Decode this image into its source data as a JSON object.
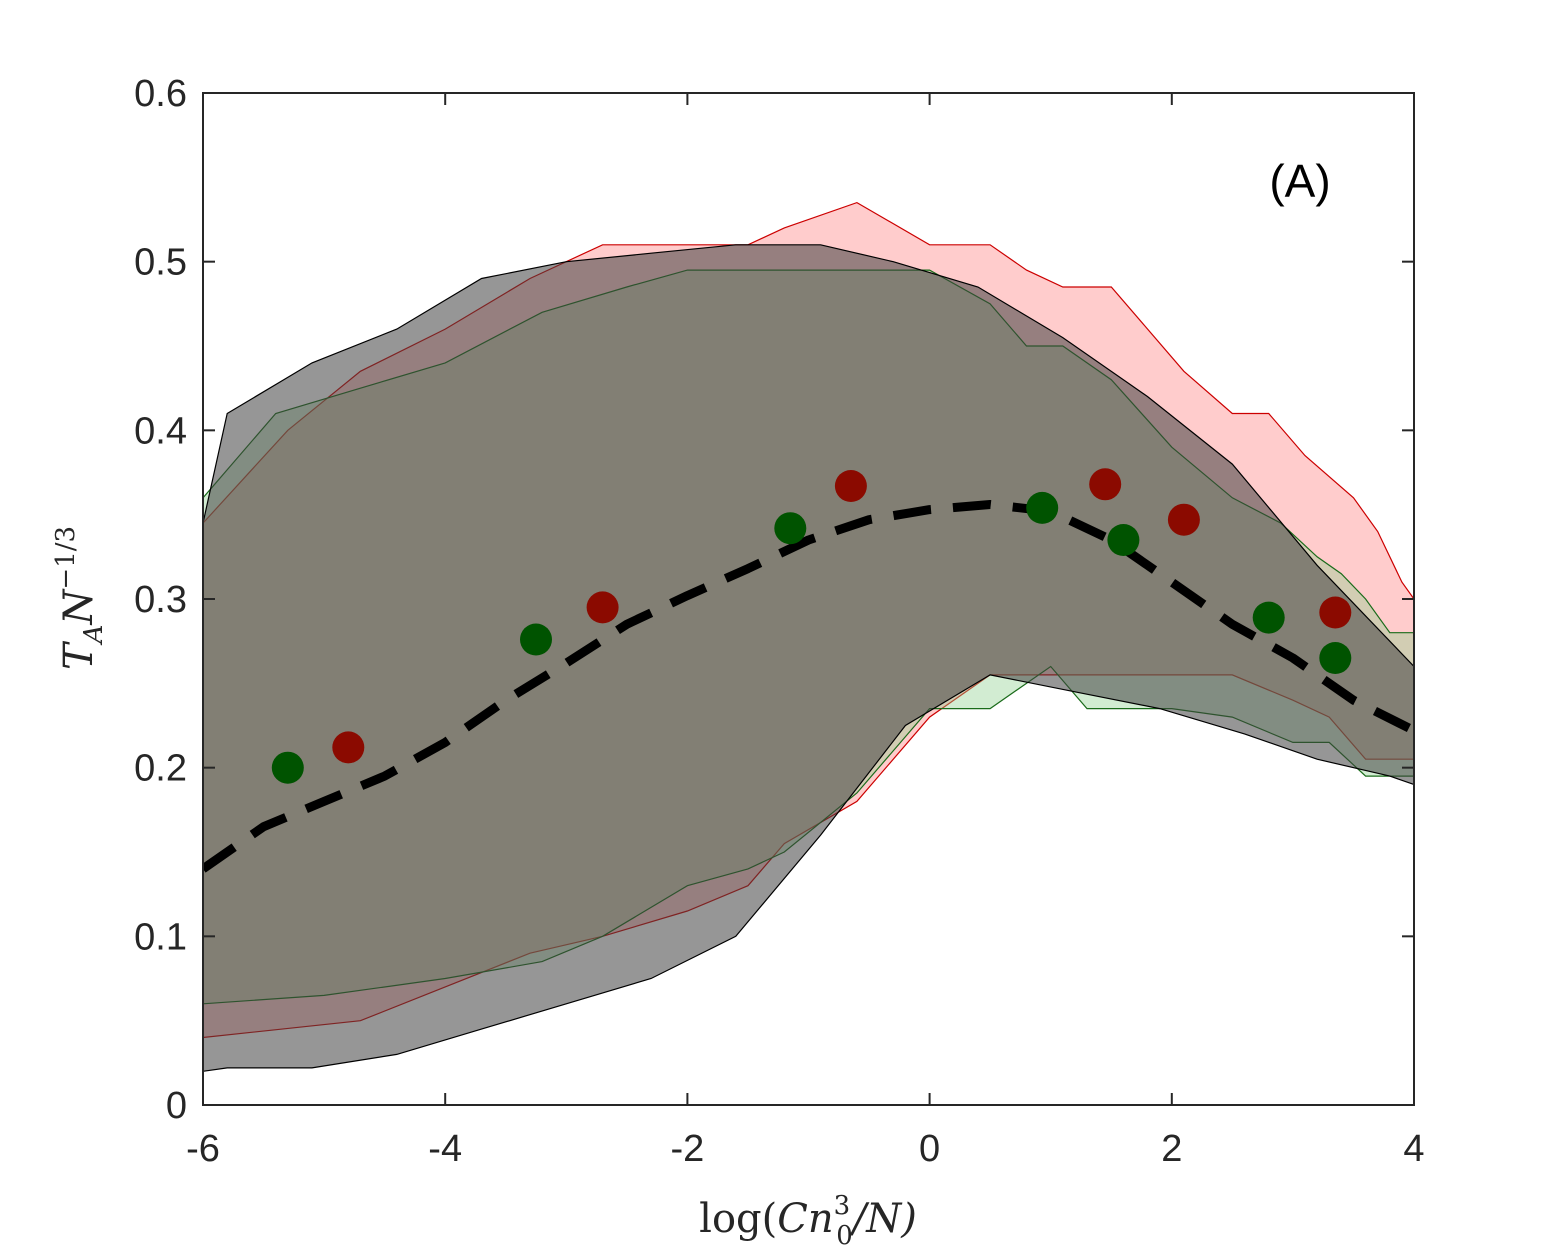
{
  "chart_data": {
    "type": "area",
    "panel_label": "(A)",
    "xlabel_parts": {
      "fn": "log(",
      "c": "C",
      "n": "n",
      "sup": "3",
      "sub": "0",
      "rest": "/N)"
    },
    "ylabel_parts": {
      "t": "T",
      "tsub": "A",
      "n": "N",
      "sup": "−1/3"
    },
    "xlim": [
      -6,
      4
    ],
    "ylim": [
      0,
      0.6
    ],
    "xticks": [
      -6,
      -4,
      -2,
      0,
      2,
      4
    ],
    "xtick_labels": [
      "-6",
      "-4",
      "-2",
      "0",
      "2",
      "4"
    ],
    "yticks": [
      0,
      0.1,
      0.2,
      0.3,
      0.4,
      0.5,
      0.6
    ],
    "ytick_labels": [
      "0",
      "0.1",
      "0.2",
      "0.3",
      "0.4",
      "0.5",
      "0.6"
    ],
    "grid": false,
    "colors": {
      "red_fill": "#ff9999",
      "red_edge": "#cc0000",
      "green_fill": "#8fcf8f",
      "green_edge": "#1a6b1a",
      "gray_fill": "#404040",
      "gray_edge": "#000000",
      "red_marker": "#8b0a00",
      "green_marker": "#005300",
      "dashed": "#000000"
    },
    "bands": [
      {
        "name": "red",
        "upper_x": [
          -6,
          -5.3,
          -4.7,
          -4,
          -3.3,
          -2.7,
          -2,
          -1.5,
          -1.2,
          -0.6,
          0,
          0.5,
          0.8,
          1.1,
          1.5,
          1.8,
          2.1,
          2.5,
          2.8,
          3.1,
          3.5,
          3.7,
          3.9,
          4
        ],
        "upper_y": [
          0.345,
          0.4,
          0.435,
          0.46,
          0.49,
          0.51,
          0.51,
          0.51,
          0.52,
          0.535,
          0.51,
          0.51,
          0.495,
          0.485,
          0.485,
          0.46,
          0.435,
          0.41,
          0.41,
          0.385,
          0.36,
          0.34,
          0.31,
          0.3
        ],
        "lower_x": [
          -6,
          -4.7,
          -4,
          -3.3,
          -2.7,
          -2,
          -1.5,
          -1.2,
          -0.6,
          0,
          0.5,
          1,
          1.5,
          2,
          2.5,
          3,
          3.3,
          3.6,
          4
        ],
        "lower_y": [
          0.04,
          0.05,
          0.07,
          0.09,
          0.1,
          0.115,
          0.13,
          0.155,
          0.18,
          0.23,
          0.255,
          0.255,
          0.255,
          0.255,
          0.255,
          0.24,
          0.23,
          0.205,
          0.205
        ]
      },
      {
        "name": "green",
        "upper_x": [
          -6,
          -5.4,
          -4.7,
          -4,
          -3.2,
          -2.5,
          -2,
          -1.5,
          -1,
          -0.5,
          0,
          0.5,
          0.8,
          1.1,
          1.5,
          2,
          2.5,
          2.9,
          3.2,
          3.4,
          3.6,
          3.8,
          4
        ],
        "upper_y": [
          0.36,
          0.41,
          0.425,
          0.44,
          0.47,
          0.485,
          0.495,
          0.495,
          0.495,
          0.495,
          0.495,
          0.475,
          0.45,
          0.45,
          0.43,
          0.39,
          0.36,
          0.345,
          0.325,
          0.315,
          0.3,
          0.28,
          0.28
        ],
        "lower_x": [
          -6,
          -5,
          -4,
          -3.2,
          -2.7,
          -2,
          -1.5,
          -1.2,
          -0.6,
          0,
          0.5,
          1,
          1.3,
          2,
          2.5,
          3,
          3.3,
          3.6,
          4
        ],
        "lower_y": [
          0.06,
          0.065,
          0.075,
          0.085,
          0.1,
          0.13,
          0.14,
          0.15,
          0.185,
          0.235,
          0.235,
          0.26,
          0.235,
          0.235,
          0.23,
          0.215,
          0.215,
          0.195,
          0.195
        ]
      },
      {
        "name": "gray",
        "upper_x": [
          -6,
          -5.8,
          -5.1,
          -4.4,
          -3.7,
          -3,
          -2.3,
          -1.6,
          -0.9,
          -0.3,
          0.4,
          1.1,
          1.8,
          2.5,
          3.2,
          3.8,
          4
        ],
        "upper_y": [
          0.345,
          0.41,
          0.44,
          0.46,
          0.49,
          0.5,
          0.505,
          0.51,
          0.51,
          0.5,
          0.485,
          0.455,
          0.42,
          0.38,
          0.32,
          0.275,
          0.26
        ],
        "lower_x": [
          -6,
          -5.8,
          -5.1,
          -4.4,
          -3.7,
          -3,
          -2.3,
          -1.6,
          -0.9,
          -0.2,
          0.5,
          1.2,
          1.9,
          2.6,
          3.2,
          3.8,
          4
        ],
        "lower_y": [
          0.02,
          0.022,
          0.022,
          0.03,
          0.045,
          0.06,
          0.075,
          0.1,
          0.16,
          0.225,
          0.255,
          0.245,
          0.235,
          0.22,
          0.205,
          0.195,
          0.19
        ]
      }
    ],
    "series": [
      {
        "name": "red points",
        "x": [
          -4.8,
          -2.7,
          -0.65,
          1.45,
          2.1,
          3.35
        ],
        "y": [
          0.212,
          0.295,
          0.367,
          0.368,
          0.347,
          0.292
        ]
      },
      {
        "name": "green points",
        "x": [
          -5.3,
          -3.25,
          -1.15,
          0.93,
          1.6,
          2.8,
          3.35
        ],
        "y": [
          0.2,
          0.276,
          0.342,
          0.354,
          0.335,
          0.289,
          0.265
        ]
      },
      {
        "name": "dashed fit",
        "x": [
          -6,
          -5.5,
          -5,
          -4.5,
          -4,
          -3.5,
          -3,
          -2.5,
          -2,
          -1.5,
          -1,
          -0.5,
          0,
          0.5,
          1,
          1.5,
          2,
          2.5,
          3,
          3.5,
          4
        ],
        "y": [
          0.14,
          0.165,
          0.18,
          0.195,
          0.215,
          0.24,
          0.262,
          0.285,
          0.302,
          0.318,
          0.335,
          0.347,
          0.353,
          0.356,
          0.352,
          0.335,
          0.31,
          0.285,
          0.265,
          0.24,
          0.222
        ]
      }
    ]
  }
}
